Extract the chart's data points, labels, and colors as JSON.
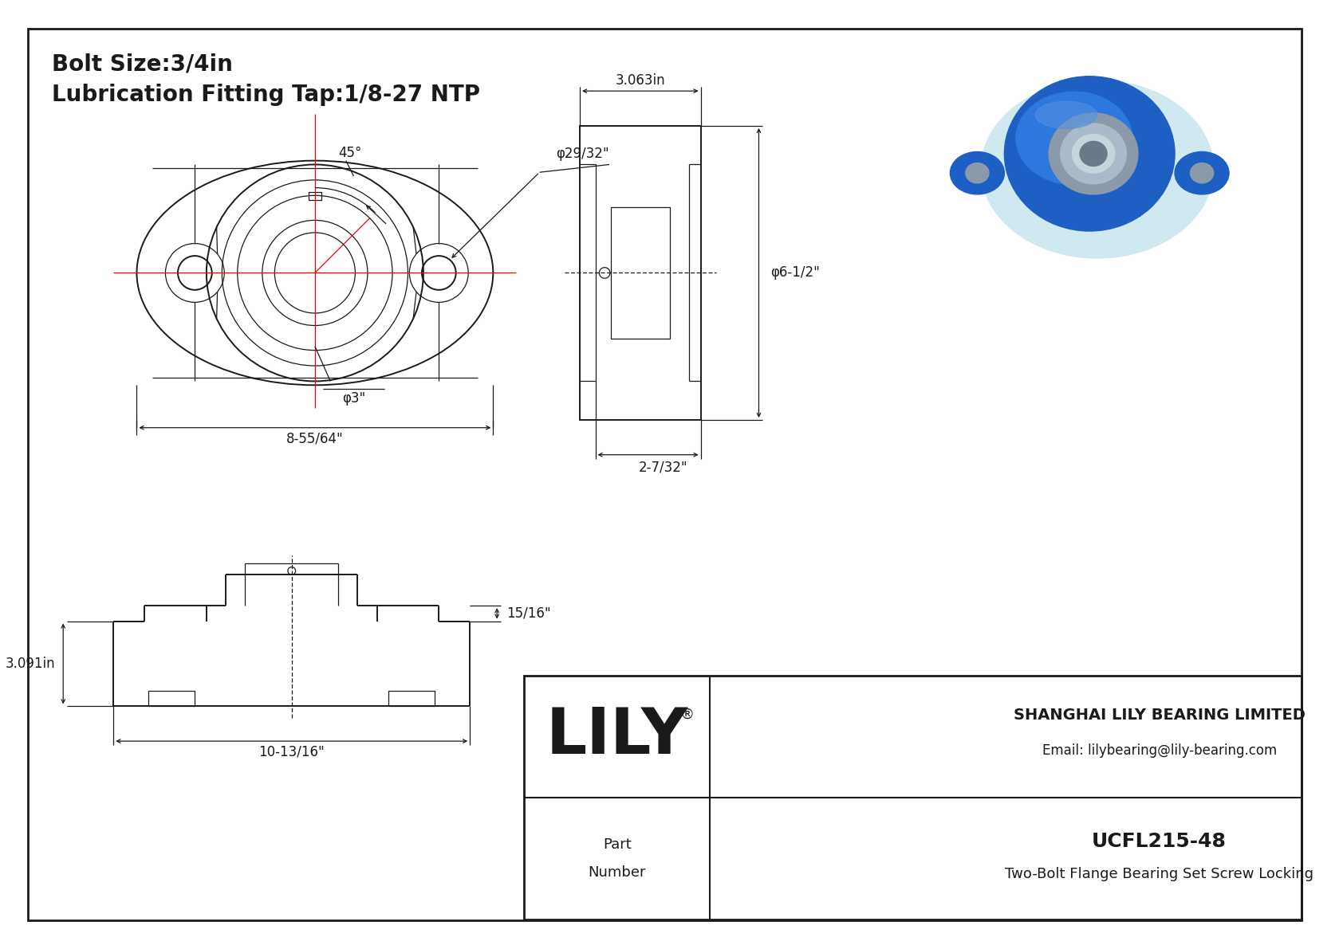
{
  "bg_color": "#ffffff",
  "line_color": "#1a1a1a",
  "red_color": "#ff0000",
  "title_line1": "Bolt Size:3/4in",
  "title_line2": "Lubrication Fitting Tap:1/8-27 NTP",
  "part_number": "UCFL215-48",
  "part_desc": "Two-Bolt Flange Bearing Set Screw Locking",
  "company": "SHANGHAI LILY BEARING LIMITED",
  "email": "Email: lilybearing@lily-bearing.com",
  "lily_text": "LILY",
  "dim_45": "45°",
  "dim_phi2932": "φ29/32\"",
  "dim_phi3": "φ3\"",
  "dim_855_64": "8-55/64\"",
  "dim_3063": "3.063in",
  "dim_phi6_12": "φ6-1/2\"",
  "dim_2_732": "2-7/32\"",
  "dim_3091": "3.091in",
  "dim_15_16": "15/16\"",
  "dim_10_1316": "10-13/16\""
}
